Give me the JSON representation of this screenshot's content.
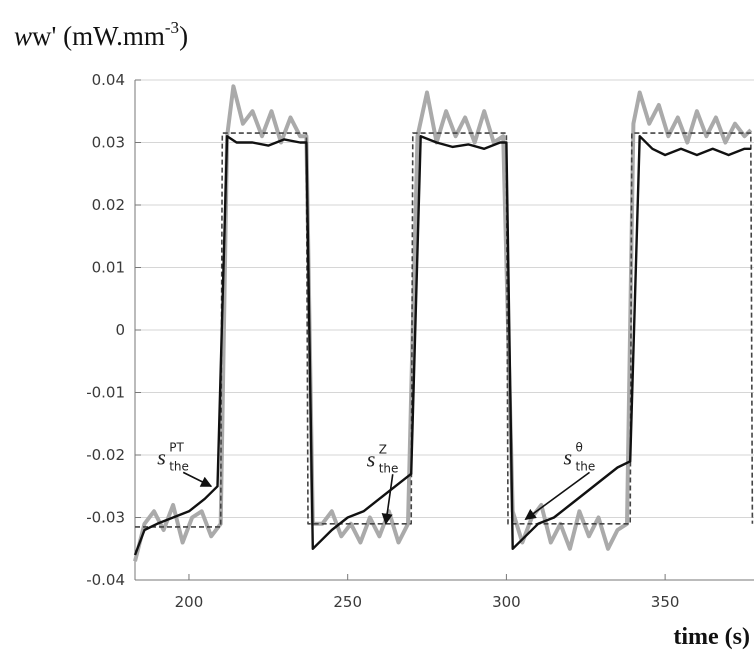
{
  "chart_data": {
    "type": "line",
    "ylabel": {
      "main": "w' (mW.mm",
      "exp": "-3",
      "close": ")"
    },
    "xlabel": "time (s)",
    "xlim": [
      183,
      378
    ],
    "ylim": [
      -0.04,
      0.04
    ],
    "x_ticks": [
      200,
      250,
      300,
      350
    ],
    "y_ticks": [
      {
        "value": 0.04,
        "label": "0.04"
      },
      {
        "value": 0.03,
        "label": "0.03"
      },
      {
        "value": 0.02,
        "label": "0.02"
      },
      {
        "value": 0.01,
        "label": "0.01"
      },
      {
        "value": 0,
        "label": "0"
      },
      {
        "value": -0.01,
        "label": "-0.01"
      },
      {
        "value": -0.02,
        "label": "-0.02"
      },
      {
        "value": -0.03,
        "label": "-0.03"
      },
      {
        "value": -0.04,
        "label": "-0.04"
      }
    ],
    "grid": "horizontal",
    "series": [
      {
        "color": "#aaaaaa",
        "style": "noisy",
        "x": [
          183,
          186,
          189,
          192,
          195,
          198,
          201,
          204,
          207,
          210,
          212,
          214,
          217,
          220,
          223,
          226,
          229,
          232,
          235,
          237,
          239,
          242,
          245,
          248,
          251,
          254,
          257,
          260,
          263,
          266,
          269,
          272,
          275,
          278,
          281,
          284,
          287,
          290,
          293,
          296,
          299,
          302,
          305,
          308,
          311,
          314,
          317,
          320,
          323,
          326,
          329,
          332,
          335,
          338,
          340,
          342,
          345,
          348,
          351,
          354,
          357,
          360,
          363,
          366,
          369,
          372,
          375,
          377
        ],
        "y": [
          -0.037,
          -0.031,
          -0.029,
          -0.032,
          -0.028,
          -0.034,
          -0.03,
          -0.029,
          -0.033,
          -0.031,
          0.031,
          0.039,
          0.033,
          0.035,
          0.031,
          0.035,
          0.03,
          0.034,
          0.031,
          0.031,
          -0.031,
          -0.031,
          -0.029,
          -0.033,
          -0.031,
          -0.034,
          -0.03,
          -0.033,
          -0.029,
          -0.034,
          -0.031,
          0.031,
          0.038,
          0.03,
          0.035,
          0.031,
          0.034,
          0.03,
          0.035,
          0.03,
          0.031,
          -0.029,
          -0.034,
          -0.03,
          -0.028,
          -0.034,
          -0.031,
          -0.035,
          -0.029,
          -0.033,
          -0.03,
          -0.035,
          -0.032,
          -0.031,
          0.033,
          0.038,
          0.033,
          0.036,
          0.031,
          0.034,
          0.03,
          0.035,
          0.031,
          0.034,
          0.03,
          0.033,
          0.031,
          0.032
        ]
      },
      {
        "color": "#444444",
        "style": "dashed",
        "x": [
          183,
          210,
          210.5,
          237,
          237.5,
          270,
          270.5,
          300,
          300.5,
          339,
          339.5,
          377,
          377.5
        ],
        "y": [
          -0.0315,
          -0.0315,
          0.0315,
          0.0315,
          -0.031,
          -0.031,
          0.0315,
          0.0315,
          -0.031,
          -0.031,
          0.0315,
          0.0315,
          -0.031
        ]
      },
      {
        "color": "#111111",
        "style": "solid",
        "x": [
          183,
          186,
          190,
          195,
          200,
          205,
          209,
          212,
          215,
          220,
          225,
          230,
          235,
          237,
          239,
          245,
          250,
          255,
          260,
          265,
          270,
          273,
          278,
          283,
          288,
          293,
          298,
          300,
          302,
          306,
          310,
          315,
          320,
          325,
          330,
          335,
          339,
          342,
          346,
          350,
          355,
          360,
          365,
          370,
          375,
          377
        ],
        "y": [
          -0.036,
          -0.032,
          -0.031,
          -0.03,
          -0.029,
          -0.027,
          -0.025,
          0.031,
          0.03,
          0.03,
          0.0295,
          0.0305,
          0.03,
          0.03,
          -0.035,
          -0.032,
          -0.03,
          -0.029,
          -0.027,
          -0.025,
          -0.023,
          0.031,
          0.03,
          0.0293,
          0.0297,
          0.029,
          0.03,
          0.03,
          -0.035,
          -0.033,
          -0.031,
          -0.03,
          -0.028,
          -0.026,
          -0.024,
          -0.022,
          -0.021,
          0.031,
          0.029,
          0.028,
          0.029,
          0.028,
          0.029,
          0.028,
          0.029,
          0.029
        ]
      }
    ],
    "annotations": [
      {
        "label": "s",
        "sub": "the",
        "sup": "PT",
        "x": 190,
        "y": -0.0215,
        "tip_x": 207,
        "tip_y": -0.025
      },
      {
        "label": "s",
        "sub": "the",
        "sup": "Z",
        "x": 256,
        "y": -0.0218,
        "tip_x": 262,
        "tip_y": -0.031
      },
      {
        "label": "s",
        "sub": "the",
        "sup": "θ",
        "x": 318,
        "y": -0.0215,
        "tip_x": 306,
        "tip_y": -0.0303
      }
    ]
  }
}
